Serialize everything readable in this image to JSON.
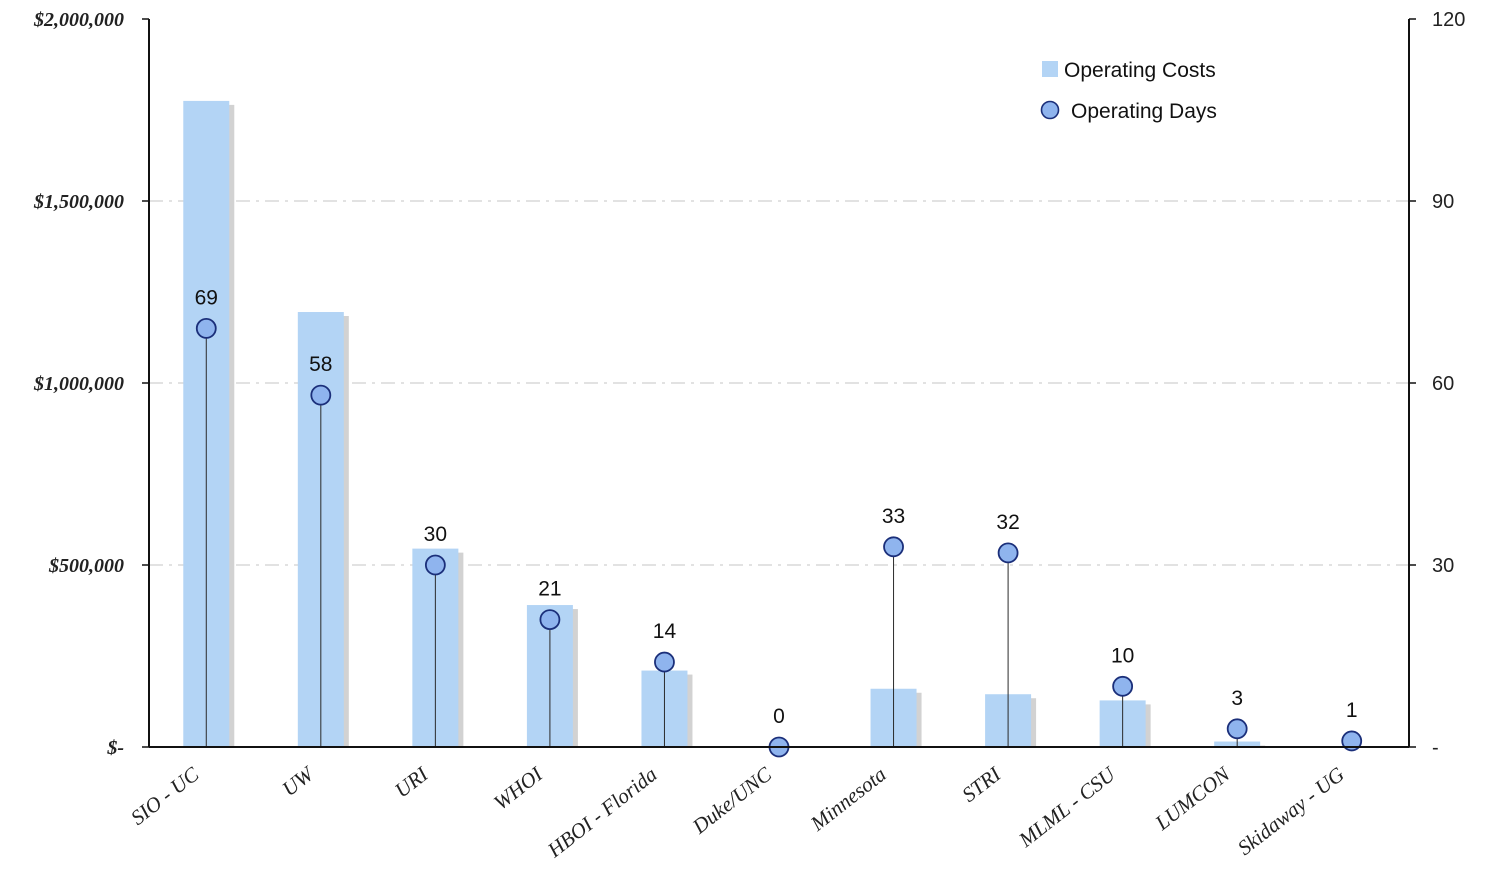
{
  "chart_data": {
    "type": "bar",
    "categories": [
      "SIO - UC",
      "UW",
      "URI",
      "WHOI",
      "HBOI - Florida",
      "Duke/UNC",
      "Minnesota",
      "STRI",
      "MLML - CSU",
      "LUMCON",
      "Skidaway - UG"
    ],
    "series": [
      {
        "name": "Operating Costs",
        "type": "bar",
        "axis": "left",
        "color": "#b3d4f5",
        "values": [
          1775000,
          1195000,
          545000,
          390000,
          210000,
          0,
          160000,
          145000,
          128000,
          15000,
          0
        ]
      },
      {
        "name": "Operating Days",
        "type": "scatter",
        "axis": "right",
        "color": "#8fb4ee",
        "values": [
          69,
          58,
          30,
          21,
          14,
          0,
          33,
          32,
          10,
          3,
          1
        ],
        "labels": [
          "69",
          "58",
          "30",
          "21",
          "14",
          "0",
          "33",
          "32",
          "10",
          "3",
          "1"
        ]
      }
    ],
    "y_left": {
      "ylim": [
        0,
        2000000
      ],
      "ticks": [
        0,
        500000,
        1000000,
        1500000,
        2000000
      ],
      "tick_labels": [
        "$-",
        "$500,000",
        "$1,000,000",
        "$1,500,000",
        "$2,000,000"
      ]
    },
    "y_right": {
      "ylim": [
        0,
        120
      ],
      "ticks": [
        0,
        30,
        60,
        90,
        120
      ],
      "tick_labels": [
        "-",
        "30",
        "60",
        "90",
        "120"
      ]
    },
    "grid": true,
    "legend": {
      "position": "top-right",
      "items": [
        {
          "label": "Operating Costs",
          "marker": "square"
        },
        {
          "label": "Operating Days",
          "marker": "circle"
        }
      ]
    },
    "title": "",
    "xlabel": "",
    "ylabel": ""
  }
}
